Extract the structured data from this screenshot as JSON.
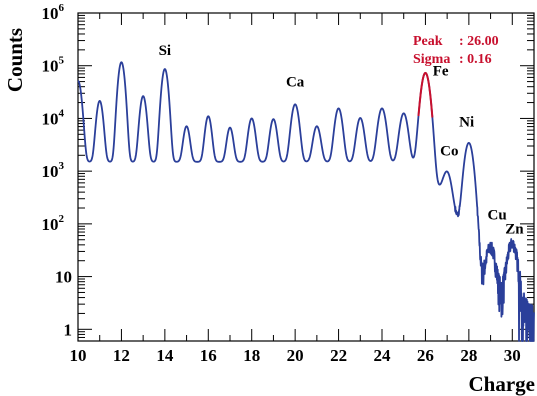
{
  "chart_data": {
    "type": "line",
    "xlabel": "Charge",
    "ylabel": "Counts",
    "xlim": [
      10,
      31
    ],
    "ylim": [
      0.6,
      1000000
    ],
    "yscale": "log",
    "x_ticks": [
      "10",
      "12",
      "14",
      "16",
      "18",
      "20",
      "22",
      "24",
      "26",
      "28",
      "30"
    ],
    "y_ticks": [
      {
        "value": 1,
        "base": "1",
        "exp": ""
      },
      {
        "value": 10,
        "base": "10",
        "exp": ""
      },
      {
        "value": 100,
        "base": "10",
        "exp": "2"
      },
      {
        "value": 1000,
        "base": "10",
        "exp": "3"
      },
      {
        "value": 10000,
        "base": "10",
        "exp": "4"
      },
      {
        "value": 100000,
        "base": "10",
        "exp": "5"
      },
      {
        "value": 1000000,
        "base": "10",
        "exp": "6"
      }
    ],
    "series": [
      {
        "color": "#2b3f9a",
        "peaks": [
          {
            "z": 10,
            "counts": 50000,
            "width": 0.13
          },
          {
            "z": 11,
            "counts": 20000,
            "width": 0.12
          },
          {
            "z": 12,
            "counts": 115000,
            "width": 0.12
          },
          {
            "z": 13,
            "counts": 25000,
            "width": 0.12
          },
          {
            "z": 14,
            "counts": 85000,
            "width": 0.12
          },
          {
            "z": 15,
            "counts": 5600,
            "width": 0.12
          },
          {
            "z": 16,
            "counts": 9500,
            "width": 0.12
          },
          {
            "z": 17,
            "counts": 5200,
            "width": 0.12
          },
          {
            "z": 18,
            "counts": 8500,
            "width": 0.13
          },
          {
            "z": 19,
            "counts": 8200,
            "width": 0.13
          },
          {
            "z": 20,
            "counts": 17000,
            "width": 0.14
          },
          {
            "z": 21,
            "counts": 5600,
            "width": 0.14
          },
          {
            "z": 22,
            "counts": 14000,
            "width": 0.14
          },
          {
            "z": 23,
            "counts": 8700,
            "width": 0.14
          },
          {
            "z": 24,
            "counts": 14000,
            "width": 0.15
          },
          {
            "z": 25,
            "counts": 11000,
            "width": 0.15
          },
          {
            "z": 26,
            "counts": 72000,
            "width": 0.16
          },
          {
            "z": 27,
            "counts": 700,
            "width": 0.16
          },
          {
            "z": 28,
            "counts": 3400,
            "width": 0.16
          },
          {
            "z": 29,
            "counts": 30,
            "width": 0.17
          },
          {
            "z": 30,
            "counts": 40,
            "width": 0.18
          }
        ],
        "background": [
          {
            "x": 10,
            "y": 1500
          },
          {
            "x": 25.6,
            "y": 1500
          },
          {
            "x": 26.8,
            "y": 400
          },
          {
            "x": 27.6,
            "y": 100
          },
          {
            "x": 28.6,
            "y": 8
          },
          {
            "x": 30.5,
            "y": 2
          },
          {
            "x": 31,
            "y": 1
          }
        ]
      }
    ],
    "fit": {
      "color": "#c8102e",
      "mean": 26.0,
      "sigma": 0.16,
      "peak_label": "Peak",
      "peak_value": ": 26.00",
      "sigma_label": "Sigma",
      "sigma_value": ":  0.16"
    },
    "peak_labels": [
      {
        "name": "Si",
        "x": 14,
        "y": 160000
      },
      {
        "name": "Ca",
        "x": 20,
        "y": 40000
      },
      {
        "name": "Fe",
        "x": 26.7,
        "y": 65000
      },
      {
        "name": "Co",
        "x": 27.1,
        "y": 2000
      },
      {
        "name": "Ni",
        "x": 27.9,
        "y": 7000
      },
      {
        "name": "Cu",
        "x": 29.3,
        "y": 120
      },
      {
        "name": "Zn",
        "x": 30.1,
        "y": 65
      }
    ]
  }
}
